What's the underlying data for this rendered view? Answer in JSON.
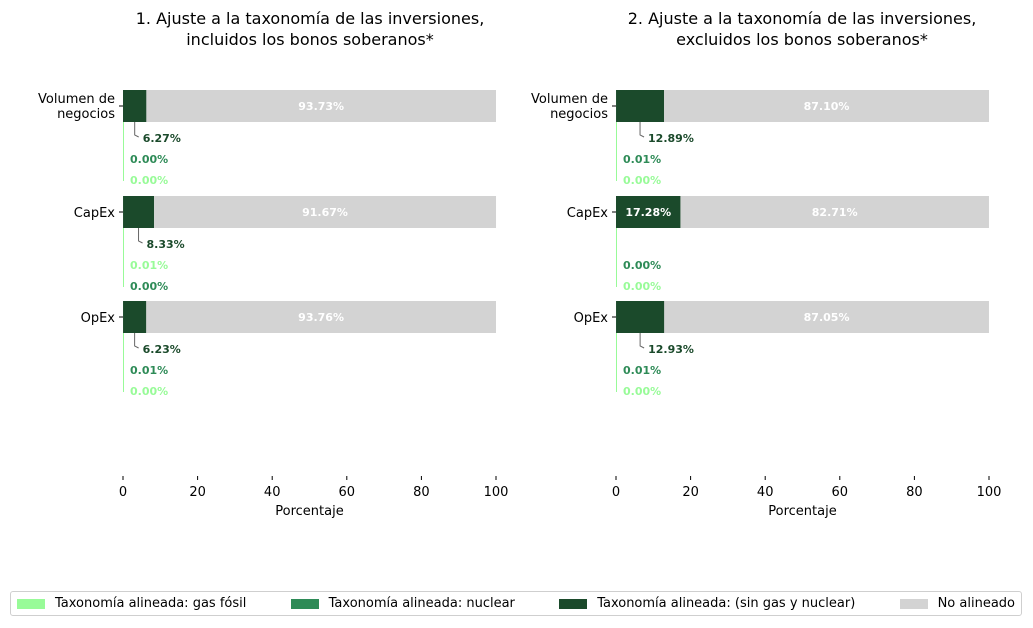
{
  "colors": {
    "gas": "#98fb98",
    "nuclear": "#2e8b57",
    "sin": "#1b4a2b",
    "no": "#d3d3d3"
  },
  "legend": [
    {
      "label": "Taxonomía alineada: gas fósil",
      "key": "gas"
    },
    {
      "label": "Taxonomía alineada: nuclear",
      "key": "nuclear"
    },
    {
      "label": "Taxonomía alineada: (sin gas y nuclear)",
      "key": "sin"
    },
    {
      "label": "No alineado",
      "key": "no"
    }
  ],
  "chart_data": [
    {
      "type": "bar",
      "orientation": "horizontal",
      "stacked": true,
      "title": [
        "1. Ajuste a la taxonomía de las inversiones,",
        "incluidos los bonos soberanos*"
      ],
      "xlabel": "Porcentaje",
      "xlim": [
        0,
        100
      ],
      "xticks": [
        "0",
        "20",
        "40",
        "60",
        "80",
        "100"
      ],
      "categories": [
        [
          "Volumen de",
          "negocios"
        ],
        [
          "CapEx"
        ],
        [
          "OpEx"
        ]
      ],
      "series": [
        {
          "name": "Taxonomía alineada: gas fósil",
          "key": "gas",
          "values": [
            0.0,
            0.01,
            0.0
          ],
          "labels": [
            "0.00%",
            "0.01%",
            "0.00%"
          ]
        },
        {
          "name": "Taxonomía alineada: nuclear",
          "key": "nuclear",
          "values": [
            0.0,
            0.0,
            0.01
          ],
          "labels": [
            "0.00%",
            "0.00%",
            "0.01%"
          ]
        },
        {
          "name": "Taxonomía alineada: (sin gas y nuclear)",
          "key": "sin",
          "values": [
            6.27,
            8.33,
            6.23
          ],
          "labels": [
            "6.27%",
            "8.33%",
            "6.23%"
          ]
        },
        {
          "name": "No alineado",
          "key": "no",
          "values": [
            93.73,
            91.67,
            93.76
          ],
          "labels": [
            "93.73%",
            "91.67%",
            "93.76%"
          ]
        }
      ],
      "gridlines": false,
      "legend_position": "bottom"
    },
    {
      "type": "bar",
      "orientation": "horizontal",
      "stacked": true,
      "title": [
        "2. Ajuste a la taxonomía de las inversiones,",
        "excluidos los bonos soberanos*"
      ],
      "xlabel": "Porcentaje",
      "xlim": [
        0,
        100
      ],
      "xticks": [
        "0",
        "20",
        "40",
        "60",
        "80",
        "100"
      ],
      "categories": [
        [
          "Volumen de",
          "negocios"
        ],
        [
          "CapEx"
        ],
        [
          "OpEx"
        ]
      ],
      "series": [
        {
          "name": "Taxonomía alineada: gas fósil",
          "key": "gas",
          "values": [
            0.0,
            0.0,
            0.0
          ],
          "labels": [
            "0.00%",
            "0.00%",
            "0.00%"
          ]
        },
        {
          "name": "Taxonomía alineada: nuclear",
          "key": "nuclear",
          "values": [
            0.01,
            0.0,
            0.01
          ],
          "labels": [
            "0.01%",
            "0.00%",
            "0.01%"
          ]
        },
        {
          "name": "Taxonomía alineada: (sin gas y nuclear)",
          "key": "sin",
          "values": [
            12.89,
            17.28,
            12.93
          ],
          "labels": [
            "12.89%",
            "17.28%",
            "12.93%"
          ]
        },
        {
          "name": "No alineado",
          "key": "no",
          "values": [
            87.1,
            82.71,
            87.05
          ],
          "labels": [
            "87.10%",
            "82.71%",
            "87.05%"
          ]
        }
      ],
      "gridlines": false,
      "legend_position": "bottom"
    }
  ]
}
